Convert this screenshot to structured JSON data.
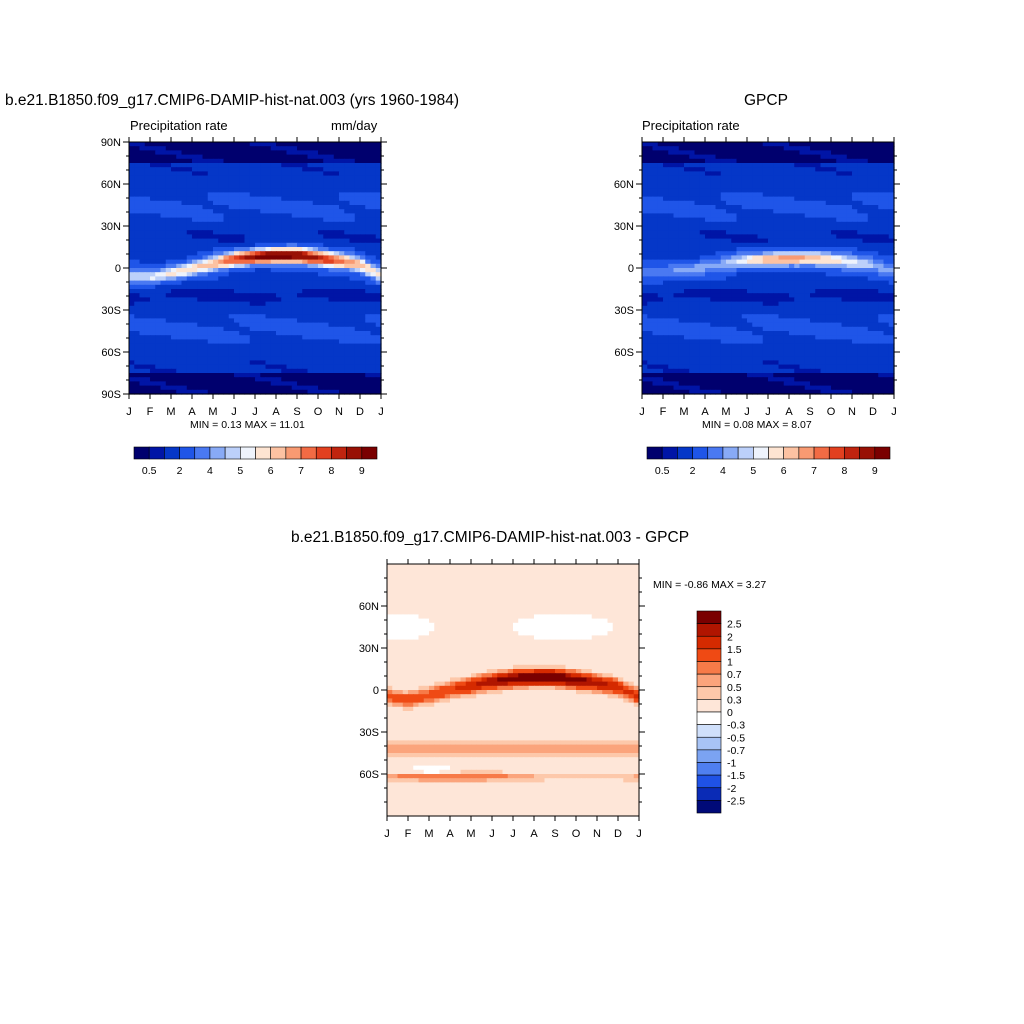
{
  "chart_data": [
    {
      "type": "heatmap",
      "title": "b.e21.B1850.f09_g17.CMIP6-DAMIP-hist-nat.003 (yrs 1960-1984)",
      "left_label": "Precipitation rate",
      "right_label": "mm/day",
      "x_ticks": [
        "J",
        "F",
        "M",
        "A",
        "M",
        "J",
        "J",
        "A",
        "S",
        "O",
        "N",
        "D",
        "J"
      ],
      "y_ticks": [
        "90N",
        "60N",
        "30N",
        "0",
        "30S",
        "60S",
        "90S"
      ],
      "min_max_text": "MIN =   0.13 MAX =   11.01",
      "colorbar_labels": [
        "0.5",
        "2",
        "4",
        "5",
        "6",
        "7",
        "8",
        "9"
      ],
      "colors": [
        "#00006e",
        "#0015a6",
        "#0537c8",
        "#1f55e8",
        "#4a79f2",
        "#88aaf6",
        "#bcd0fa",
        "#eef3fc",
        "#fde4d2",
        "#fcc2a2",
        "#f89a72",
        "#f26b44",
        "#e2401f",
        "#c0240f",
        "#981004",
        "#7a0000"
      ],
      "peak_mm_day": 11.01,
      "itcz_lat_deg": [
        -5,
        -7,
        -4,
        0,
        3,
        6,
        8,
        9,
        9,
        7,
        5,
        2,
        -5
      ]
    },
    {
      "type": "heatmap",
      "title": "GPCP",
      "left_label": "Precipitation rate",
      "x_ticks": [
        "J",
        "F",
        "M",
        "A",
        "M",
        "J",
        "J",
        "A",
        "S",
        "O",
        "N",
        "D",
        "J"
      ],
      "y_ticks": [
        "60N",
        "30N",
        "0",
        "30S",
        "60S"
      ],
      "min_max_text": "MIN =   0.08 MAX =   8.07",
      "colorbar_labels": [
        "0.5",
        "2",
        "4",
        "5",
        "6",
        "7",
        "8",
        "9"
      ],
      "colors": [
        "#00006e",
        "#0015a6",
        "#0537c8",
        "#1f55e8",
        "#4a79f2",
        "#88aaf6",
        "#bcd0fa",
        "#eef3fc",
        "#fde4d2",
        "#fcc2a2",
        "#f89a72",
        "#f26b44",
        "#e2401f",
        "#c0240f",
        "#981004",
        "#7a0000"
      ],
      "peak_mm_day": 8.07,
      "itcz_lat_deg": [
        -3,
        -4,
        -2,
        1,
        3,
        5,
        6,
        7,
        7,
        6,
        4,
        2,
        -3
      ]
    },
    {
      "type": "heatmap",
      "title": "b.e21.B1850.f09_g17.CMIP6-DAMIP-hist-nat.003 - GPCP",
      "x_ticks": [
        "J",
        "F",
        "M",
        "A",
        "M",
        "J",
        "J",
        "A",
        "S",
        "O",
        "N",
        "D",
        "J"
      ],
      "y_ticks": [
        "60N",
        "30N",
        "0",
        "30S",
        "60S"
      ],
      "min_max_text": "MIN =  -0.86 MAX =   3.27",
      "colorbar_labels": [
        "2.5",
        "2",
        "1.5",
        "1",
        "0.7",
        "0.5",
        "0.3",
        "0",
        "-0.3",
        "-0.5",
        "-0.7",
        "-1",
        "-1.5",
        "-2",
        "-2.5"
      ],
      "colors": [
        "#7a0000",
        "#b01500",
        "#d52a00",
        "#ef4a14",
        "#f77a48",
        "#fba47c",
        "#fdc8aa",
        "#fee6d8",
        "#ffffff",
        "#d0e0fb",
        "#a8c4f6",
        "#7ba3f2",
        "#4f7ff0",
        "#1f52e6",
        "#0a2bb6",
        "#000a78"
      ]
    }
  ]
}
